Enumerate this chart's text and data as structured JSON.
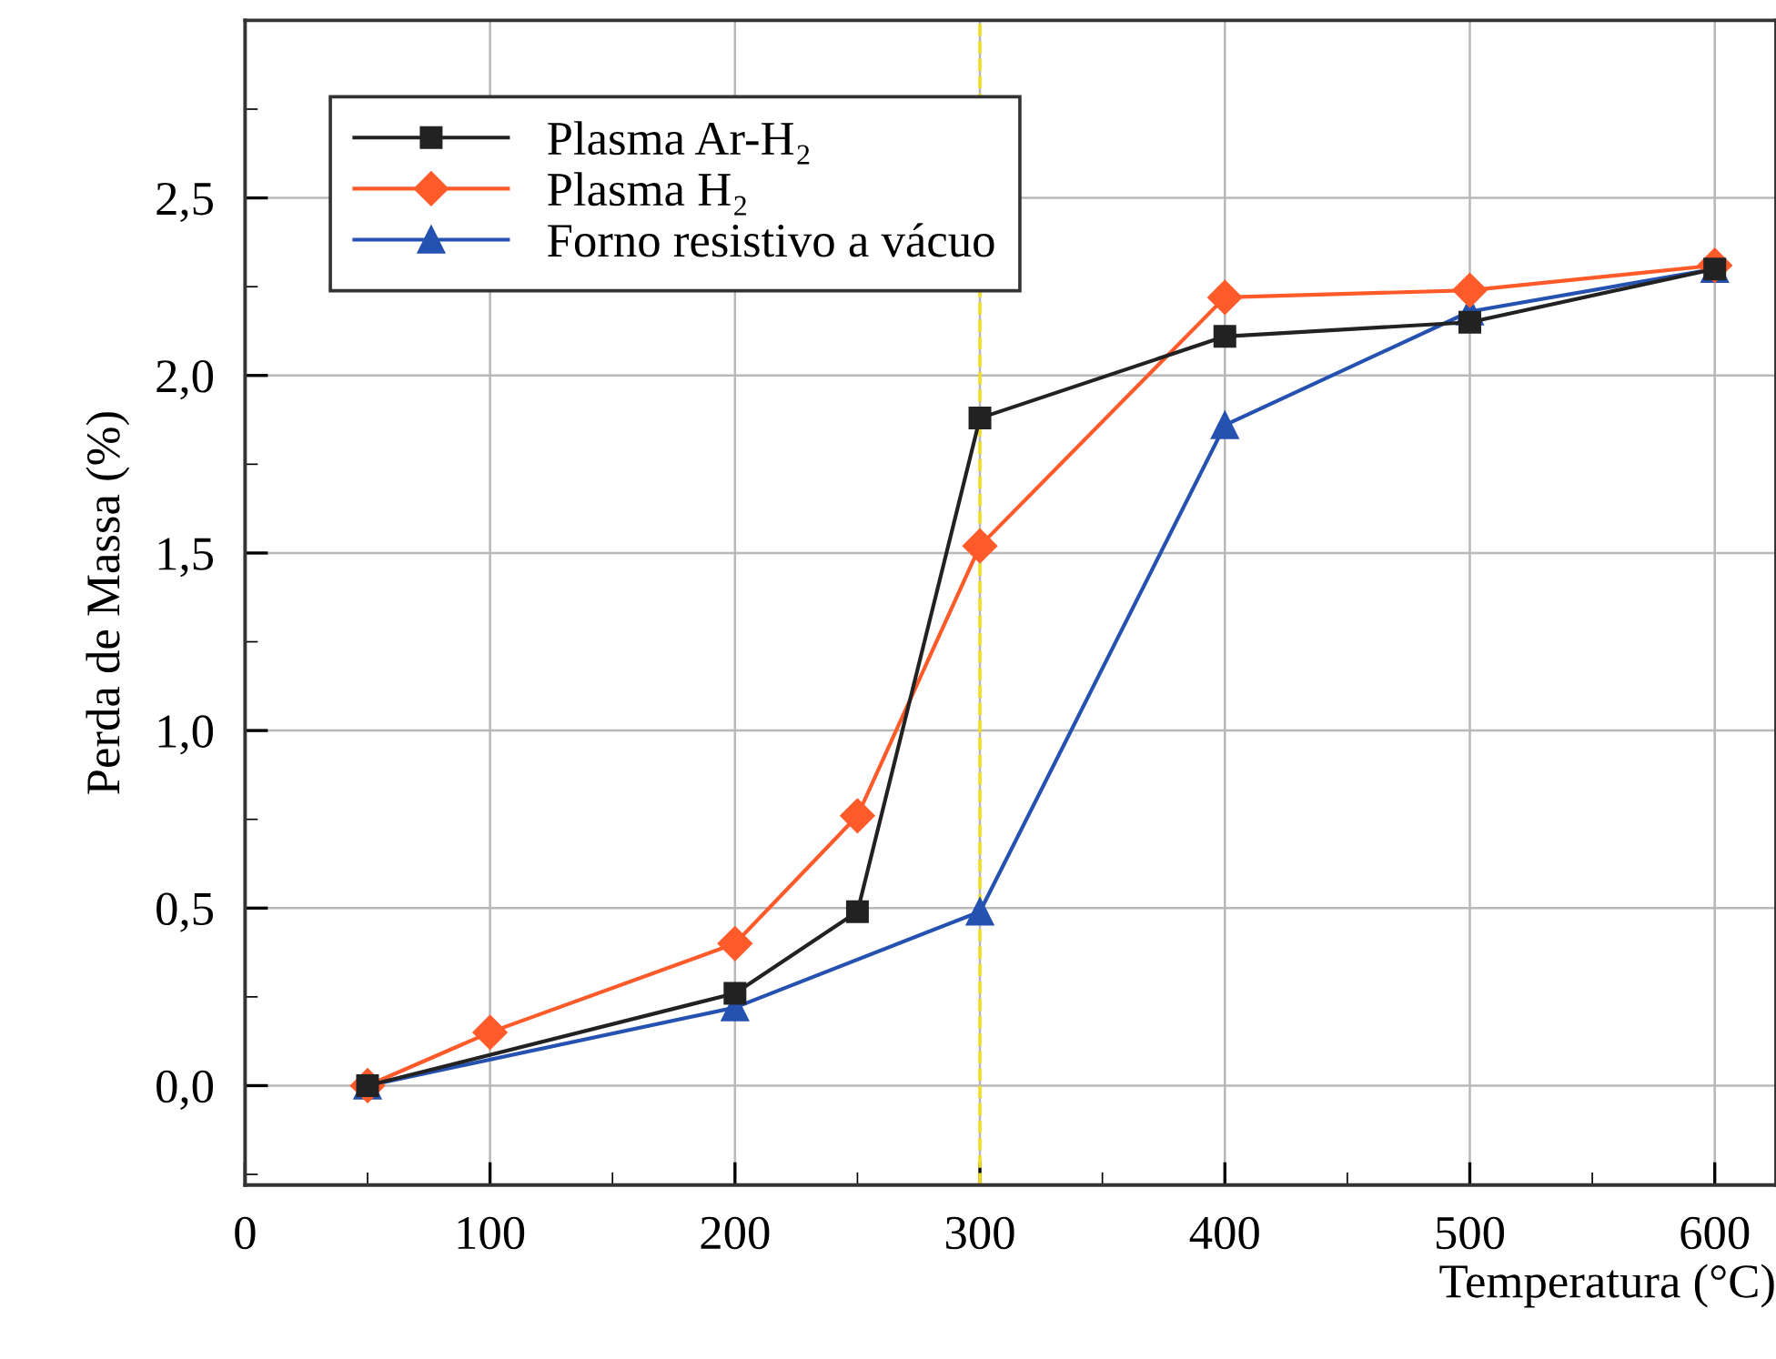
{
  "chart_data": {
    "type": "line",
    "xlabel": "Temperatura (°C)",
    "ylabel": "Perda de Massa (%)",
    "xlim": [
      0,
      625
    ],
    "ylim": [
      -0.28,
      3.0
    ],
    "xticks": [
      0,
      {
        "value": 50,
        "label": null
      },
      100,
      {
        "value": 150,
        "label": null
      },
      200,
      {
        "value": 250,
        "label": null
      },
      300,
      {
        "value": 350,
        "label": null
      },
      400,
      {
        "value": 450,
        "label": null
      },
      500,
      {
        "value": 550,
        "label": null
      },
      600
    ],
    "yticks": [
      {
        "value": -0.25,
        "label": null
      },
      {
        "value": 0,
        "label": "0,0"
      },
      {
        "value": 0.25,
        "label": null
      },
      {
        "value": 0.5,
        "label": "0,5"
      },
      {
        "value": 0.75,
        "label": null
      },
      {
        "value": 1.0,
        "label": "1,0"
      },
      {
        "value": 1.25,
        "label": null
      },
      {
        "value": 1.5,
        "label": "1,5"
      },
      {
        "value": 1.75,
        "label": null
      },
      {
        "value": 2.0,
        "label": "2,0"
      },
      {
        "value": 2.25,
        "label": null
      },
      {
        "value": 2.5,
        "label": "2,5"
      },
      {
        "value": 2.75,
        "label": null
      }
    ],
    "grid": true,
    "legend": "top left",
    "line_style": "solid",
    "series": [
      {
        "name": "Plasma Ar-H₂",
        "color": "#222222",
        "marker": "square",
        "x": [
          50,
          200,
          250,
          300,
          400,
          500,
          600
        ],
        "values": [
          0.0,
          0.26,
          0.49,
          1.88,
          2.11,
          2.15,
          2.3
        ]
      },
      {
        "name": "Plasma H₂",
        "color": "#ff5a2a",
        "marker": "diamond",
        "x": [
          50,
          100,
          200,
          250,
          300,
          400,
          500,
          600
        ],
        "values": [
          0.0,
          0.15,
          0.4,
          0.76,
          1.52,
          2.22,
          2.24,
          2.31
        ]
      },
      {
        "name": "Forno resistivo a vácuo",
        "color": "#2552b0",
        "marker": "triangle",
        "x": [
          50,
          200,
          300,
          400,
          500,
          600
        ],
        "values": [
          0.0,
          0.22,
          0.49,
          1.86,
          2.18,
          2.3
        ]
      }
    ],
    "ref_lines": [
      {
        "axis": "x",
        "value": 300,
        "label": null,
        "color": "#f0e020",
        "line_style": "dashed"
      }
    ]
  }
}
